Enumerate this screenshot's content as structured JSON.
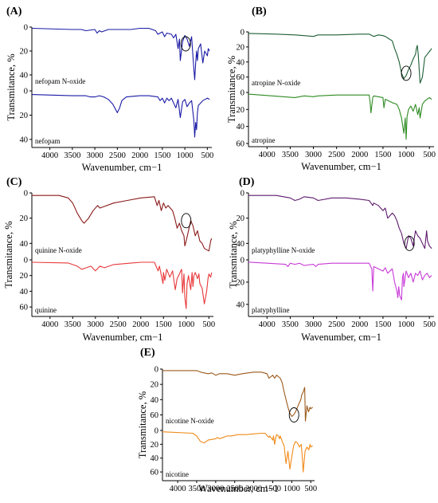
{
  "chart_data": [
    {
      "type": "line",
      "panel_label": "(A)",
      "xlabel": "Wavenumber, cm−1",
      "ylabel": "Transmitance, %",
      "x_ticks": [
        "4000",
        "3500",
        "3000",
        "2500",
        "2000",
        "1500",
        "1000",
        "500"
      ],
      "xlim": [
        4400,
        400
      ],
      "series": [
        {
          "name": "nefopam N-oxide",
          "color": "#1a1aa6",
          "y_ticks": [
            "0",
            "20",
            "40"
          ],
          "ylim": [
            0,
            48
          ],
          "x": [
            4400,
            3500,
            3300,
            3200,
            3000,
            2950,
            2900,
            2850,
            2700,
            2500,
            2200,
            2000,
            1800,
            1650,
            1600,
            1500,
            1450,
            1400,
            1300,
            1250,
            1200,
            1150,
            1120,
            1100,
            1050,
            1000,
            950,
            900,
            850,
            800,
            780,
            760,
            740,
            720,
            700,
            650,
            600,
            560,
            500,
            480,
            450
          ],
          "y": [
            1,
            2,
            2,
            3,
            2,
            5,
            3,
            4,
            2,
            2,
            2,
            1,
            1,
            3,
            6,
            4,
            8,
            5,
            6,
            9,
            6,
            18,
            10,
            28,
            12,
            7,
            10,
            16,
            8,
            35,
            44,
            30,
            20,
            28,
            18,
            14,
            30,
            20,
            24,
            18,
            20
          ],
          "annotation": {
            "type": "circle",
            "x": 980,
            "y": 14
          }
        },
        {
          "name": "nefopam",
          "color": "#1a1aa6",
          "y_ticks": [
            "0",
            "20",
            "40"
          ],
          "ylim": [
            0,
            44
          ],
          "x": [
            4400,
            3500,
            3200,
            3100,
            3000,
            2900,
            2800,
            2700,
            2600,
            2500,
            2450,
            2400,
            2300,
            2000,
            1800,
            1600,
            1550,
            1500,
            1450,
            1400,
            1350,
            1300,
            1250,
            1200,
            1150,
            1100,
            1050,
            1000,
            950,
            900,
            850,
            800,
            780,
            760,
            740,
            720,
            700,
            650,
            600,
            550,
            500,
            450
          ],
          "y": [
            3,
            4,
            4,
            5,
            5,
            4,
            5,
            7,
            11,
            18,
            14,
            8,
            5,
            4,
            4,
            5,
            8,
            6,
            10,
            6,
            8,
            6,
            10,
            14,
            7,
            22,
            9,
            7,
            13,
            10,
            8,
            24,
            38,
            26,
            32,
            18,
            12,
            10,
            8,
            7,
            6,
            7
          ]
        }
      ]
    },
    {
      "type": "line",
      "panel_label": "(B)",
      "xlabel": "Wavenumber, cm−1",
      "ylabel": "Transmitance, %",
      "x_ticks": [
        "4000",
        "3500",
        "3000",
        "2500",
        "2000",
        "1500",
        "1000",
        "500"
      ],
      "xlim": [
        4400,
        400
      ],
      "series": [
        {
          "name": "atropine N-oxide",
          "color": "#1e5e35",
          "y_ticks": [
            "0",
            "20",
            "40",
            "60"
          ],
          "ylim": [
            0,
            72
          ],
          "x": [
            4400,
            3800,
            3400,
            3200,
            3000,
            2900,
            2500,
            2000,
            1800,
            1700,
            1600,
            1500,
            1450,
            1400,
            1300,
            1250,
            1200,
            1150,
            1100,
            1050,
            1000,
            950,
            900,
            850,
            800,
            780,
            760,
            740,
            720,
            700,
            650,
            600,
            550,
            500,
            450
          ],
          "y": [
            2,
            3,
            4,
            5,
            6,
            4,
            4,
            3,
            3,
            6,
            4,
            5,
            6,
            8,
            12,
            22,
            30,
            40,
            55,
            62,
            58,
            50,
            44,
            36,
            30,
            22,
            18,
            30,
            50,
            68,
            60,
            34,
            30,
            26,
            22
          ],
          "annotation": {
            "type": "circle",
            "x": 1000,
            "y": 55
          }
        },
        {
          "name": "atropine",
          "color": "#2e8b22",
          "y_ticks": [
            "0",
            "20",
            "40",
            "60"
          ],
          "ylim": [
            0,
            60
          ],
          "x": [
            4400,
            3400,
            3200,
            3000,
            2900,
            2500,
            2000,
            1800,
            1780,
            1760,
            1720,
            1700,
            1500,
            1480,
            1450,
            1300,
            1200,
            1150,
            1100,
            1050,
            1020,
            1000,
            980,
            950,
            900,
            850,
            800,
            750,
            720,
            700,
            650,
            600,
            500,
            450
          ],
          "y": [
            2,
            6,
            4,
            5,
            4,
            3,
            3,
            3,
            10,
            24,
            6,
            4,
            6,
            18,
            8,
            12,
            14,
            20,
            30,
            48,
            30,
            55,
            28,
            20,
            16,
            22,
            14,
            26,
            18,
            30,
            14,
            10,
            6,
            8
          ]
        }
      ]
    },
    {
      "type": "line",
      "panel_label": "(C)",
      "xlabel": "Wavenumber, cm−1",
      "ylabel": "Transmitance, %",
      "x_ticks": [
        "4000",
        "3500",
        "3000",
        "2500",
        "2000",
        "1500",
        "1000",
        "500"
      ],
      "xlim": [
        4400,
        400
      ],
      "series": [
        {
          "name": "quinine N-oxide",
          "color": "#8b1a1a",
          "y_ticks": [
            "0",
            "20",
            "40"
          ],
          "ylim": [
            0,
            48
          ],
          "x": [
            4400,
            3800,
            3600,
            3500,
            3400,
            3300,
            3250,
            3150,
            3050,
            2950,
            2900,
            2600,
            2300,
            2000,
            1700,
            1640,
            1600,
            1550,
            1500,
            1450,
            1400,
            1300,
            1250,
            1200,
            1150,
            1100,
            1050,
            1030,
            1000,
            950,
            900,
            850,
            800,
            750,
            700,
            650,
            600,
            500,
            460,
            440
          ],
          "y": [
            2,
            2,
            4,
            8,
            16,
            22,
            24,
            20,
            14,
            10,
            12,
            8,
            6,
            4,
            3,
            10,
            6,
            14,
            8,
            12,
            10,
            14,
            20,
            28,
            24,
            30,
            34,
            42,
            38,
            30,
            22,
            26,
            34,
            30,
            38,
            40,
            44,
            46,
            38,
            36
          ],
          "annotation": {
            "type": "circle",
            "x": 1000,
            "y": 22
          }
        },
        {
          "name": "quinine",
          "color": "#e8383a",
          "y_ticks": [
            "0",
            "20",
            "40",
            "60"
          ],
          "ylim": [
            0,
            68
          ],
          "x": [
            4400,
            3600,
            3400,
            3300,
            3200,
            3100,
            3000,
            2900,
            2800,
            2600,
            2400,
            2200,
            2000,
            1700,
            1620,
            1590,
            1510,
            1500,
            1470,
            1430,
            1360,
            1300,
            1240,
            1200,
            1100,
            1080,
            1050,
            1030,
            1000,
            980,
            950,
            900,
            870,
            850,
            830,
            800,
            750,
            720,
            700,
            650,
            600,
            550,
            520,
            500,
            460,
            440
          ],
          "y": [
            3,
            4,
            8,
            12,
            10,
            8,
            14,
            8,
            10,
            6,
            5,
            4,
            3,
            3,
            14,
            8,
            30,
            16,
            26,
            12,
            22,
            14,
            38,
            24,
            12,
            42,
            18,
            48,
            62,
            30,
            20,
            38,
            16,
            34,
            20,
            16,
            24,
            18,
            30,
            36,
            56,
            40,
            24,
            18,
            22,
            16
          ]
        }
      ]
    },
    {
      "type": "line",
      "panel_label": "(D)",
      "xlabel": "Wavenumber, cm−1",
      "ylabel": "Transmitance, %",
      "x_ticks": [
        "4000",
        "3500",
        "3000",
        "2500",
        "2000",
        "1500",
        "1000",
        "500"
      ],
      "xlim": [
        4400,
        400
      ],
      "series": [
        {
          "name": "platyphylline N-oxide",
          "color": "#5e1a6e",
          "y_ticks": [
            "0",
            "20",
            "40"
          ],
          "ylim": [
            0,
            48
          ],
          "x": [
            4400,
            3800,
            3500,
            3400,
            3300,
            3200,
            3000,
            2900,
            2600,
            2300,
            2000,
            1800,
            1720,
            1700,
            1600,
            1500,
            1450,
            1400,
            1300,
            1250,
            1200,
            1150,
            1100,
            1050,
            1000,
            950,
            900,
            850,
            800,
            750,
            700,
            650,
            600,
            560,
            540,
            500,
            450
          ],
          "y": [
            2,
            2,
            4,
            6,
            5,
            3,
            4,
            6,
            4,
            4,
            5,
            6,
            10,
            8,
            10,
            14,
            12,
            20,
            16,
            18,
            22,
            28,
            32,
            40,
            44,
            34,
            36,
            42,
            30,
            34,
            36,
            40,
            44,
            30,
            38,
            42,
            44
          ],
          "annotation": {
            "type": "circle",
            "x": 930,
            "y": 40
          }
        },
        {
          "name": "platyphylline",
          "color": "#c83ad8",
          "y_ticks": [
            "0",
            "20",
            "40"
          ],
          "ylim": [
            0,
            48
          ],
          "x": [
            4400,
            3600,
            3550,
            3500,
            3400,
            3300,
            3200,
            3000,
            2950,
            2900,
            2600,
            2300,
            2000,
            1800,
            1740,
            1720,
            1700,
            1600,
            1500,
            1450,
            1400,
            1300,
            1250,
            1200,
            1180,
            1160,
            1140,
            1100,
            1080,
            1060,
            1050,
            1000,
            950,
            900,
            850,
            800,
            750,
            700,
            650,
            600,
            550,
            500,
            450
          ],
          "y": [
            2,
            4,
            6,
            3,
            4,
            3,
            5,
            4,
            6,
            4,
            3,
            3,
            3,
            3,
            8,
            28,
            6,
            8,
            10,
            7,
            12,
            8,
            20,
            28,
            34,
            24,
            32,
            36,
            16,
            12,
            24,
            10,
            16,
            12,
            20,
            12,
            14,
            10,
            18,
            14,
            12,
            16,
            14
          ]
        }
      ]
    },
    {
      "type": "line",
      "panel_label": "(E)",
      "xlabel": "Wavenumber, cm−1",
      "ylabel": "Transmitance, %",
      "x_ticks": [
        "4000",
        "3500",
        "3000",
        "2500",
        "2000",
        "1500",
        "1000",
        "500"
      ],
      "xlim": [
        4400,
        400
      ],
      "series": [
        {
          "name": "nicotine N-oxide",
          "color": "#9c5a1a",
          "y_ticks": [
            "0",
            "20",
            "40",
            "60"
          ],
          "ylim": [
            0,
            72
          ],
          "x": [
            4400,
            3500,
            3400,
            3200,
            3100,
            3000,
            2900,
            2700,
            2500,
            2300,
            2000,
            1800,
            1650,
            1600,
            1500,
            1450,
            1400,
            1300,
            1250,
            1200,
            1150,
            1100,
            1050,
            1000,
            950,
            900,
            850,
            800,
            760,
            740,
            700,
            660,
            640,
            600,
            560,
            520,
            500,
            450
          ],
          "y": [
            2,
            2,
            4,
            6,
            5,
            8,
            6,
            6,
            8,
            6,
            4,
            4,
            6,
            12,
            8,
            12,
            8,
            12,
            18,
            30,
            40,
            50,
            58,
            62,
            60,
            56,
            50,
            44,
            40,
            34,
            30,
            24,
            68,
            48,
            56,
            50,
            52,
            50
          ],
          "annotation": {
            "type": "circle",
            "x": 940,
            "y": 60
          }
        },
        {
          "name": "nicotine",
          "color": "#f08a18",
          "y_ticks": [
            "0",
            "20",
            "40",
            "60"
          ],
          "ylim": [
            0,
            68
          ],
          "x": [
            4400,
            3600,
            3500,
            3400,
            3300,
            3200,
            3000,
            2950,
            2900,
            2800,
            2700,
            2600,
            2400,
            2200,
            2000,
            1800,
            1700,
            1600,
            1580,
            1500,
            1480,
            1450,
            1420,
            1400,
            1350,
            1320,
            1300,
            1250,
            1200,
            1150,
            1100,
            1050,
            1000,
            950,
            900,
            850,
            800,
            750,
            720,
            700,
            650,
            600,
            550,
            520,
            500,
            450
          ],
          "y": [
            2,
            4,
            8,
            16,
            18,
            14,
            12,
            10,
            12,
            10,
            8,
            8,
            6,
            6,
            5,
            4,
            4,
            10,
            8,
            14,
            8,
            20,
            10,
            6,
            8,
            12,
            8,
            16,
            22,
            48,
            30,
            56,
            38,
            22,
            16,
            18,
            24,
            20,
            40,
            60,
            30,
            24,
            28,
            20,
            24,
            22
          ]
        }
      ]
    }
  ]
}
